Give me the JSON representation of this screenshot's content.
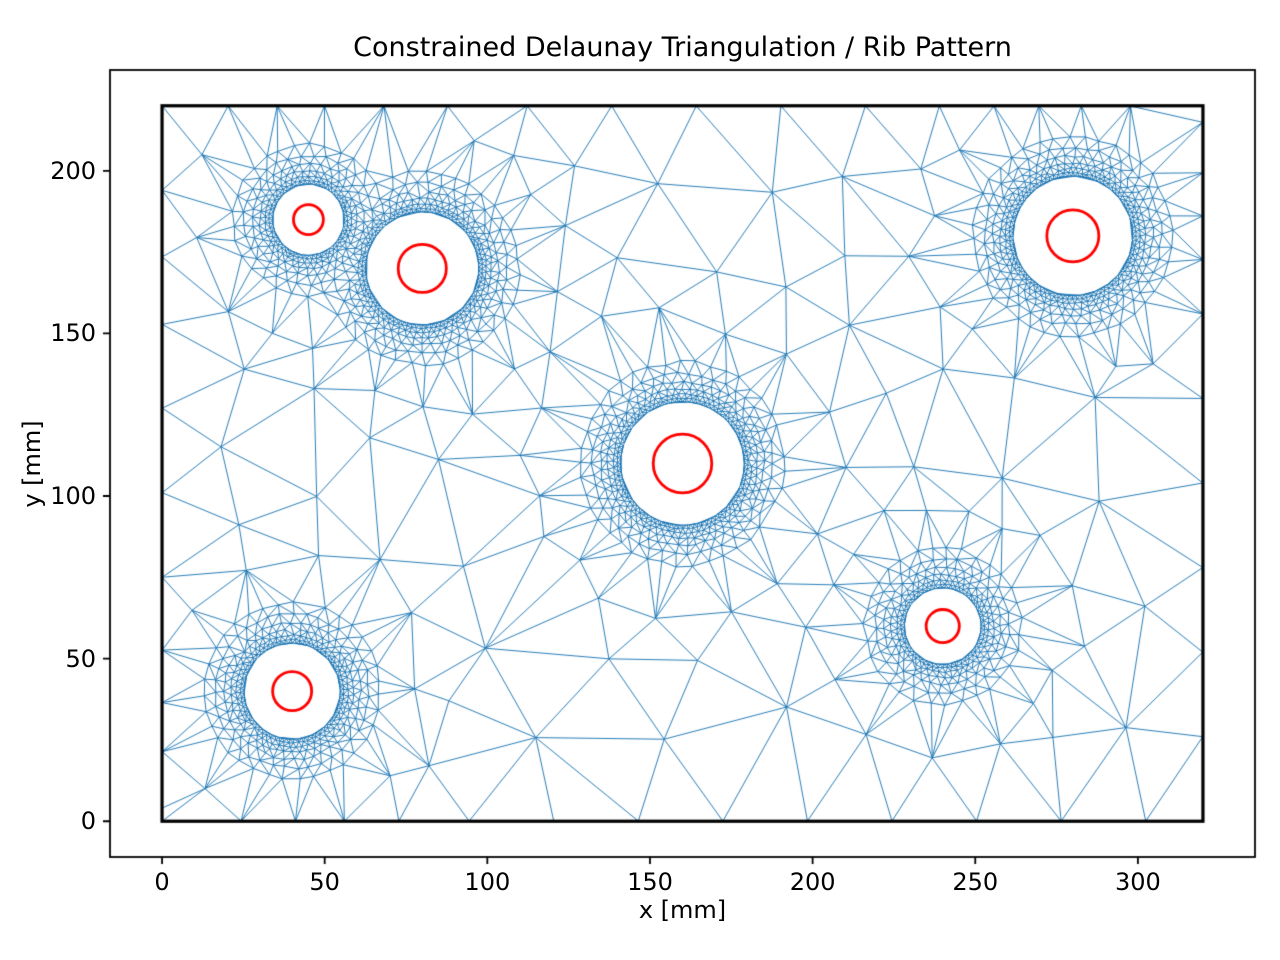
{
  "figure": {
    "title": "Constrained Delaunay Triangulation / Rib Pattern",
    "xlabel": "x [mm]",
    "ylabel": "y [mm]"
  },
  "chart_data": {
    "type": "triangulation",
    "title": "Constrained Delaunay Triangulation / Rib Pattern",
    "xlabel": "x [mm]",
    "ylabel": "y [mm]",
    "xticks": [
      0,
      50,
      100,
      150,
      200,
      250,
      300
    ],
    "yticks": [
      0,
      50,
      100,
      150,
      200
    ],
    "xlim": [
      -16,
      336
    ],
    "ylim": [
      -11,
      231
    ],
    "domain_rect": {
      "x": [
        0,
        320
      ],
      "y": [
        0,
        220
      ]
    },
    "holes": [
      {
        "cx": 45,
        "cy": 185,
        "hole_r": 11.0,
        "rib_r": 4.6
      },
      {
        "cx": 80,
        "cy": 170,
        "hole_r": 17.4,
        "rib_r": 7.4
      },
      {
        "cx": 160,
        "cy": 110,
        "hole_r": 19.0,
        "rib_r": 9.0
      },
      {
        "cx": 280,
        "cy": 180,
        "hole_r": 18.4,
        "rib_r": 8.0
      },
      {
        "cx": 40,
        "cy": 40,
        "hole_r": 14.8,
        "rib_r": 6.0
      },
      {
        "cx": 240,
        "cy": 60,
        "hole_r": 11.8,
        "rib_r": 5.1
      }
    ],
    "mesh_color": "#1f77b4",
    "rib_color": "#ff0000",
    "boundary_color": "#000000",
    "grid": false,
    "legend": false
  }
}
